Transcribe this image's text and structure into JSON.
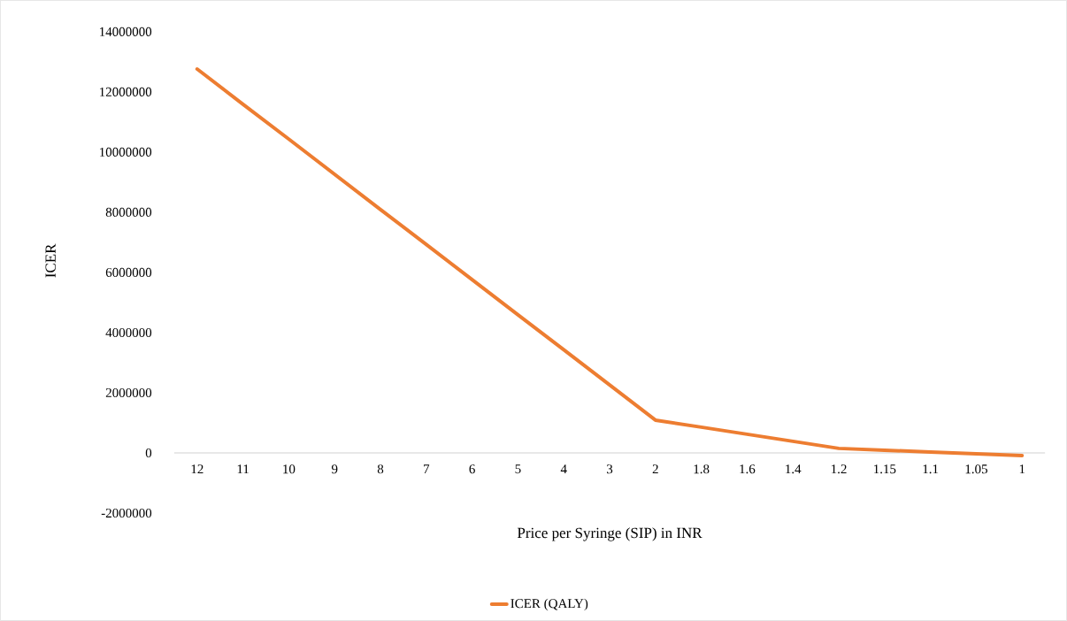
{
  "chart_data": {
    "type": "line",
    "xlabel": "Price per Syringe (SIP) in INR",
    "ylabel": "ICER",
    "categories": [
      "12",
      "11",
      "10",
      "9",
      "8",
      "7",
      "6",
      "5",
      "4",
      "3",
      "2",
      "1.8",
      "1.6",
      "1.4",
      "1.2",
      "1.15",
      "1.1",
      "1.05",
      "1"
    ],
    "series": [
      {
        "name": "ICER (QALY)",
        "color": "#ed7d31",
        "values": [
          12760000,
          11590000,
          10430000,
          9260000,
          8090000,
          6930000,
          5760000,
          4590000,
          3430000,
          2260000,
          1090000,
          855000,
          620000,
          385000,
          150000,
          90000,
          30000,
          -30000,
          -90000
        ]
      }
    ],
    "ylim": [
      -2000000,
      14000000
    ],
    "yticks": [
      -2000000,
      0,
      2000000,
      4000000,
      6000000,
      8000000,
      10000000,
      12000000,
      14000000
    ],
    "legend": "bottom",
    "marker": "none",
    "line_style": "solid"
  }
}
